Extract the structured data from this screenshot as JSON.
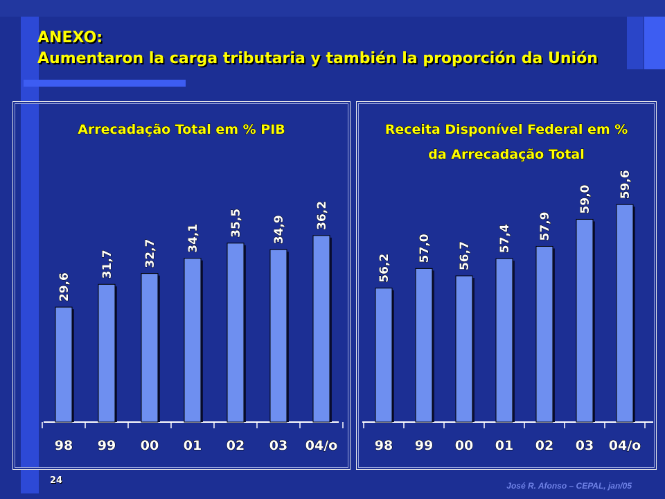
{
  "slide": {
    "title_line1": "ANEXO:",
    "title_line2": "Aumentaron la carga tributaria y también la proporción da Unión",
    "page_number": "24",
    "author": "José R. Afonso – CEPAL, jan/05"
  },
  "colors": {
    "background": "#1c2f94",
    "accent": "#3d5df2",
    "title_text": "#ffff00",
    "bar_fill": "#6e8ff0",
    "bar_shadow": "#0a0f3a",
    "label_text": "#ffffff"
  },
  "chart_data": [
    {
      "type": "bar",
      "title_lines": [
        "Arrecadação Total em % PIB"
      ],
      "categories": [
        "98",
        "99",
        "00",
        "01",
        "02",
        "03",
        "04/o"
      ],
      "values": [
        29.6,
        31.7,
        32.7,
        34.1,
        35.5,
        34.9,
        36.2
      ],
      "value_labels": [
        "29,6",
        "31,7",
        "32,7",
        "34,1",
        "35,5",
        "34,9",
        "36,2"
      ],
      "ylim": [
        19,
        38.3
      ],
      "grid": false,
      "legend": "none"
    },
    {
      "type": "bar",
      "title_lines": [
        "Receita Disponível Federal em %",
        "da Arrecadação Total"
      ],
      "categories": [
        "98",
        "99",
        "00",
        "01",
        "02",
        "03",
        "04/o"
      ],
      "values": [
        56.2,
        57.0,
        56.7,
        57.4,
        57.9,
        59.0,
        59.6
      ],
      "value_labels": [
        "56,2",
        "57,0",
        "56,7",
        "57,4",
        "57,9",
        "59,0",
        "59,6"
      ],
      "ylim": [
        50.75,
        61.1
      ],
      "grid": false,
      "legend": "none"
    }
  ]
}
